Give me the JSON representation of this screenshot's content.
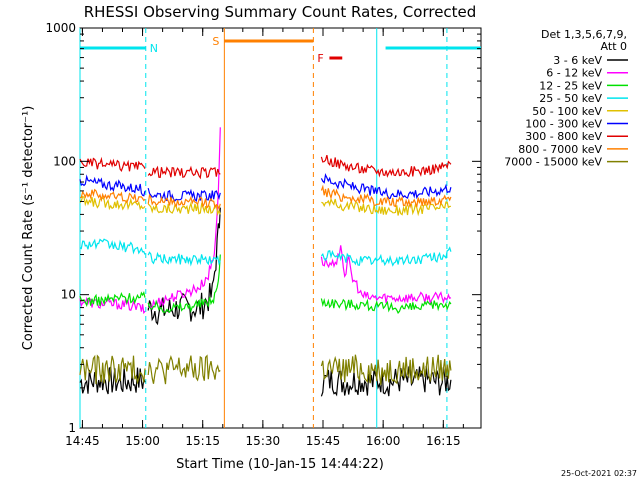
{
  "chart_data": {
    "type": "line",
    "title": "RHESSI Observing Summary Count Rates, Corrected",
    "xlabel": "Start Time (10-Jan-15 14:44:22)",
    "ylabel": "Corrected Count Rate (s⁻¹ detector⁻¹)",
    "y_scale": "log",
    "ylim": [
      1,
      1000
    ],
    "xlim_minutes": [
      0,
      100
    ],
    "x_tick_labels": [
      "14:45",
      "15:00",
      "15:15",
      "15:30",
      "15:45",
      "16:00",
      "16:15"
    ],
    "x_tick_minutes": [
      0.6,
      15.6,
      30.6,
      45.6,
      60.6,
      75.6,
      90.6
    ],
    "y_tick_labels": [
      "1",
      "10",
      "100",
      "1000"
    ],
    "y_tick_values": [
      1,
      10,
      100,
      1000
    ],
    "legend_header": [
      "Det 1,3,5,6,7,9,",
      "Att 0"
    ],
    "legend_position": "top-right",
    "timestamp": "25-Oct-2021 02:37",
    "flag_bars": [
      {
        "label": "N",
        "color": "#00e5ee",
        "segments": [
          [
            0,
            16.4
          ],
          [
            76.2,
            100
          ]
        ],
        "dashes_at": [
          16.4,
          91.5
        ],
        "solid_at": [
          0,
          74
        ]
      },
      {
        "label": "S",
        "color": "#ff8000",
        "segments": [
          [
            36,
            58.2
          ]
        ],
        "solid_at": [
          36
        ],
        "dashes_at": [
          58.2
        ]
      },
      {
        "label": "F",
        "color": "#e00000",
        "segments": [
          [
            62.2,
            65.4
          ]
        ]
      }
    ],
    "series": [
      {
        "name": "3 - 6 keV",
        "color": "#000000",
        "segs": [
          {
            "x": [
              0,
              5,
              10,
              15,
              16.2
            ],
            "y": [
              2.2,
              2.3,
              2.2,
              2.3,
              2.2
            ]
          },
          {
            "x": [
              17,
              20,
              25,
              30,
              33,
              34.5,
              35
            ],
            "y": [
              8,
              7.5,
              8,
              8,
              10,
              28,
              45
            ]
          },
          {
            "x": [
              60.2,
              63,
              66,
              70,
              73,
              75,
              77,
              80,
              83,
              86,
              90,
              92.5
            ],
            "y": [
              2.2,
              2.3,
              2.2,
              2.3,
              2.2,
              2.3,
              2.2,
              2.3,
              2.2,
              2.3,
              2.2,
              2.3
            ]
          }
        ]
      },
      {
        "name": "6 - 12 keV",
        "color": "#ff00ff",
        "segs": [
          {
            "x": [
              0,
              5,
              10,
              15,
              16.2
            ],
            "y": [
              9,
              8.5,
              8.5,
              8,
              7.5
            ]
          },
          {
            "x": [
              17,
              20,
              25,
              30,
              32,
              33.5,
              34.5,
              35
            ],
            "y": [
              8,
              9,
              10,
              11.5,
              14,
              20,
              60,
              180
            ]
          },
          {
            "x": [
              60.2,
              62,
              64,
              65,
              66,
              67,
              68,
              69,
              70,
              72,
              76,
              80,
              85,
              90,
              92.5
            ],
            "y": [
              18,
              17,
              16,
              25,
              14,
              18,
              13,
              12,
              10,
              9.5,
              9.5,
              9.5,
              9.5,
              9.5,
              9.5
            ]
          }
        ]
      },
      {
        "name": "12 - 25 keV",
        "color": "#00e000",
        "segs": [
          {
            "x": [
              0,
              5,
              10,
              15,
              16.2
            ],
            "y": [
              9,
              9,
              9.5,
              9.5,
              9.5
            ]
          },
          {
            "x": [
              17,
              20,
              25,
              30,
              33,
              34.5,
              35
            ],
            "y": [
              8.5,
              8,
              8,
              8.5,
              9,
              12,
              20
            ]
          },
          {
            "x": [
              60.2,
              65,
              70,
              75,
              80,
              85,
              90,
              92.5
            ],
            "y": [
              9,
              8.5,
              8.5,
              8,
              8,
              8,
              8.5,
              8.5
            ]
          }
        ]
      },
      {
        "name": "25 - 50 keV",
        "color": "#00e5ee",
        "segs": [
          {
            "x": [
              0,
              5,
              10,
              15,
              16.2
            ],
            "y": [
              24,
              24,
              23,
              22,
              20
            ]
          },
          {
            "x": [
              17,
              20,
              25,
              30,
              34,
              35
            ],
            "y": [
              19,
              18.5,
              18.5,
              18.5,
              18,
              18
            ]
          },
          {
            "x": [
              60.2,
              65,
              70,
              75,
              80,
              85,
              90,
              92.5
            ],
            "y": [
              20,
              19,
              18,
              18,
              18,
              18.5,
              19.5,
              21
            ]
          }
        ]
      },
      {
        "name": "50 - 100 keV",
        "color": "#e0c000",
        "segs": [
          {
            "x": [
              0,
              5,
              10,
              15,
              16.2
            ],
            "y": [
              50,
              49,
              48,
              47,
              46
            ]
          },
          {
            "x": [
              17,
              20,
              25,
              30,
              34,
              35
            ],
            "y": [
              45,
              44,
              44,
              44,
              44,
              40
            ]
          },
          {
            "x": [
              60.2,
              65,
              70,
              75,
              80,
              85,
              90,
              92.5
            ],
            "y": [
              50,
              47,
              45,
              43,
              43,
              44,
              45,
              46
            ]
          }
        ]
      },
      {
        "name": "100 - 300 keV",
        "color": "#0000ff",
        "segs": [
          {
            "x": [
              0,
              5,
              10,
              15,
              16.2
            ],
            "y": [
              72,
              68,
              65,
              62,
              60
            ]
          },
          {
            "x": [
              17,
              20,
              25,
              30,
              34,
              35
            ],
            "y": [
              58,
              56,
              55,
              55,
              55,
              58
            ]
          },
          {
            "x": [
              60.2,
              65,
              70,
              75,
              80,
              85,
              90,
              92.5
            ],
            "y": [
              75,
              68,
              62,
              58,
              57,
              58,
              61,
              64
            ]
          }
        ]
      },
      {
        "name": "300 - 800 keV",
        "color": "#e00000",
        "segs": [
          {
            "x": [
              0,
              5,
              10,
              15,
              16.2
            ],
            "y": [
              98,
              95,
              92,
              90,
              88
            ]
          },
          {
            "x": [
              17,
              20,
              25,
              30,
              34,
              35
            ],
            "y": [
              85,
              83,
              82,
              82,
              82,
              80
            ]
          },
          {
            "x": [
              60.2,
              65,
              70,
              75,
              80,
              85,
              90,
              92.5
            ],
            "y": [
              108,
              95,
              88,
              84,
              83,
              85,
              90,
              95
            ]
          }
        ]
      },
      {
        "name": "800 - 7000 keV",
        "color": "#ff8000",
        "segs": [
          {
            "x": [
              0,
              5,
              10,
              15,
              16.2
            ],
            "y": [
              58,
              56,
              54,
              53,
              52
            ]
          },
          {
            "x": [
              17,
              20,
              25,
              30,
              34,
              35
            ],
            "y": [
              51,
              50,
              49,
              49,
              49,
              48
            ]
          },
          {
            "x": [
              60.2,
              65,
              70,
              75,
              80,
              85,
              90,
              92.5
            ],
            "y": [
              60,
              55,
              52,
              50,
              49,
              50,
              52,
              54
            ]
          }
        ]
      },
      {
        "name": "7000 - 15000 keV",
        "color": "#808000",
        "segs": [
          {
            "x": [
              0,
              5,
              10,
              15,
              16.2
            ],
            "y": [
              2.8,
              2.7,
              2.8,
              2.7,
              2.8
            ]
          },
          {
            "x": [
              17,
              20,
              25,
              30,
              34,
              35
            ],
            "y": [
              2.8,
              2.7,
              2.8,
              2.7,
              2.8,
              2.7
            ]
          },
          {
            "x": [
              60.2,
              65,
              70,
              75,
              80,
              85,
              90,
              92.5
            ],
            "y": [
              2.8,
              2.7,
              2.8,
              2.7,
              2.8,
              2.7,
              2.8,
              2.7
            ]
          }
        ]
      }
    ]
  }
}
